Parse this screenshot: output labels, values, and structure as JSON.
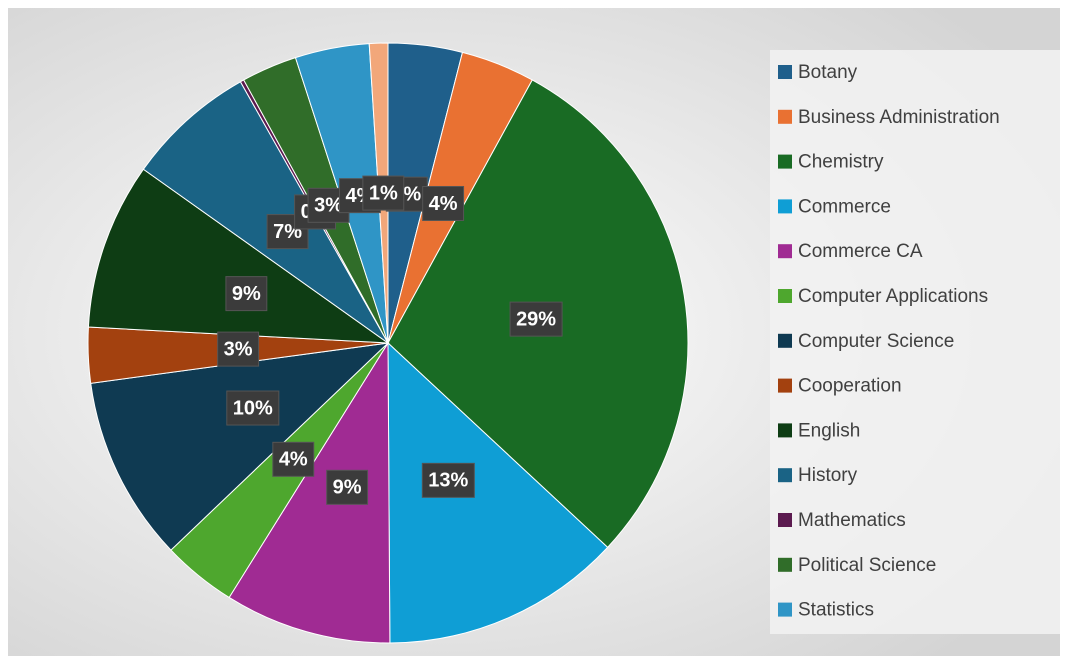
{
  "chart_data": {
    "type": "pie",
    "categories": [
      "Botany",
      "Business Administration",
      "Chemistry",
      "Commerce",
      "Commerce CA",
      "Computer Applications",
      "Computer Science",
      "Cooperation",
      "English",
      "History",
      "Mathematics",
      "Political Science",
      "Statistics",
      null
    ],
    "values": [
      4,
      4,
      29,
      13,
      9,
      4,
      10,
      3,
      9,
      7,
      0.2,
      3,
      4,
      1
    ],
    "value_labels": [
      "4%",
      "4%",
      "29%",
      "13%",
      "9%",
      "4%",
      "10%",
      "3%",
      "9%",
      "7%",
      "0%",
      "3%",
      "4%",
      "1%"
    ],
    "colors": [
      "#1f5f8b",
      "#e97132",
      "#196b24",
      "#0f9ed5",
      "#a02b93",
      "#4ea72e",
      "#0f3a52",
      "#a3410f",
      "#0e3d14",
      "#1a6385",
      "#5b1a4f",
      "#306d29",
      "#2f95c6",
      "#f2a77a"
    ],
    "legend": "right"
  }
}
